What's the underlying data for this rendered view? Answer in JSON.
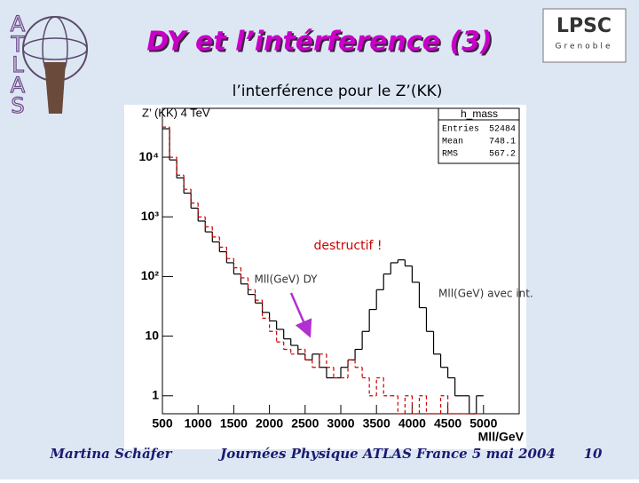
{
  "title": "DY et l’intérference (3)",
  "subtitle": "l’interférence pour le Z’(KK)",
  "logo_left": [
    "A",
    "T",
    "L",
    "A",
    "S"
  ],
  "logo_right": {
    "name": "LPSC",
    "city": "Grenoble"
  },
  "footer": {
    "author": "Martina Schäfer",
    "event": "Journées Physique ATLAS France 5 mai 2004",
    "page": 10
  },
  "chart_data": {
    "type": "histogram",
    "title": "Z’ (KK) 4 TeV",
    "xlabel": "Mll/GeV",
    "annotation": "destructif !",
    "stats": {
      "name": "h_mass",
      "rows": [
        [
          "Entries",
          52484
        ],
        [
          "Mean",
          748.1
        ],
        [
          "RMS",
          567.2
        ]
      ]
    },
    "xlim": [
      500,
      5500
    ],
    "xticks": [
      500,
      1000,
      1500,
      2000,
      2500,
      3000,
      3500,
      4000,
      4500,
      5000
    ],
    "ylim": [
      0.5,
      66000
    ],
    "ylog": true,
    "yticks": [
      1,
      10,
      {
        "value": 100,
        "label": "10²"
      },
      {
        "value": 1000,
        "label": "10³"
      },
      {
        "value": 10000,
        "label": "10⁴"
      }
    ],
    "bins": [
      500,
      600,
      700,
      800,
      900,
      1000,
      1100,
      1200,
      1300,
      1400,
      1500,
      1600,
      1700,
      1800,
      1900,
      2000,
      2100,
      2200,
      2300,
      2400,
      2500,
      2600,
      2700,
      2800,
      2900,
      3000,
      3100,
      3200,
      3300,
      3400,
      3500,
      3600,
      3700,
      3800,
      3900,
      4000,
      4100,
      4200,
      4300,
      4400,
      4500,
      4600,
      4700,
      4800,
      4900,
      5000
    ],
    "series": [
      {
        "name": "Mll(GeV) avec int.",
        "color": "#000000",
        "dash": false,
        "values": [
          30000,
          9000,
          4500,
          2500,
          1400,
          850,
          560,
          380,
          260,
          170,
          110,
          75,
          50,
          36,
          25,
          18,
          13,
          9,
          7,
          5,
          4,
          5,
          3,
          2,
          2,
          3,
          4,
          6,
          12,
          28,
          60,
          110,
          170,
          190,
          150,
          80,
          30,
          12,
          5,
          3,
          2,
          1,
          1,
          0,
          1
        ]
      },
      {
        "name": "Mll(GeV) DY",
        "color": "#cc0000",
        "dash": true,
        "values": [
          32000,
          10000,
          5000,
          2900,
          1700,
          1000,
          680,
          460,
          310,
          200,
          140,
          95,
          60,
          40,
          20,
          12,
          8,
          6,
          5,
          6,
          4,
          3,
          5,
          3,
          2,
          2,
          4,
          3,
          2,
          1,
          2,
          1,
          1,
          0,
          1,
          0,
          1,
          0,
          0,
          1,
          0,
          0,
          0,
          0,
          0
        ]
      }
    ]
  }
}
